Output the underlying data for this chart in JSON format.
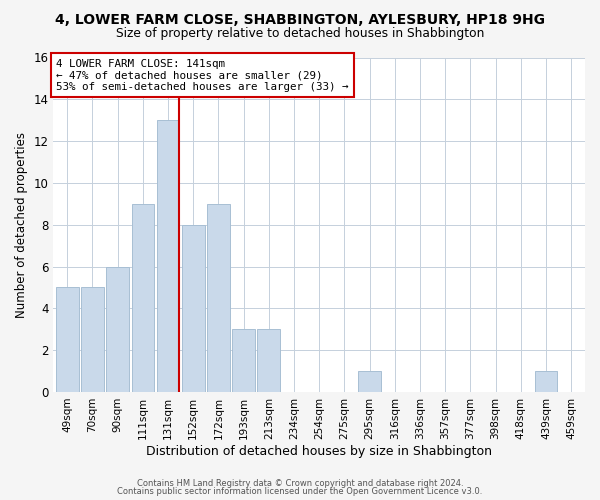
{
  "title": "4, LOWER FARM CLOSE, SHABBINGTON, AYLESBURY, HP18 9HG",
  "subtitle": "Size of property relative to detached houses in Shabbington",
  "xlabel": "Distribution of detached houses by size in Shabbington",
  "ylabel": "Number of detached properties",
  "bar_labels": [
    "49sqm",
    "70sqm",
    "90sqm",
    "111sqm",
    "131sqm",
    "152sqm",
    "172sqm",
    "193sqm",
    "213sqm",
    "234sqm",
    "254sqm",
    "275sqm",
    "295sqm",
    "316sqm",
    "336sqm",
    "357sqm",
    "377sqm",
    "398sqm",
    "418sqm",
    "439sqm",
    "459sqm"
  ],
  "bar_values": [
    5,
    5,
    6,
    9,
    13,
    8,
    9,
    3,
    3,
    0,
    0,
    0,
    1,
    0,
    0,
    0,
    0,
    0,
    0,
    1,
    0
  ],
  "bar_color": "#c9d9ea",
  "bar_edge_color": "#a8bfd4",
  "vline_x": 4.42,
  "vline_color": "#cc0000",
  "annotation_title": "4 LOWER FARM CLOSE: 141sqm",
  "annotation_line1": "← 47% of detached houses are smaller (29)",
  "annotation_line2": "53% of semi-detached houses are larger (33) →",
  "annotation_box_color": "#cc0000",
  "ylim": [
    0,
    16
  ],
  "yticks": [
    0,
    2,
    4,
    6,
    8,
    10,
    12,
    14,
    16
  ],
  "footer1": "Contains HM Land Registry data © Crown copyright and database right 2024.",
  "footer2": "Contains public sector information licensed under the Open Government Licence v3.0.",
  "bg_color": "#f5f5f5",
  "plot_bg": "#ffffff",
  "grid_color": "#c5d0dc"
}
